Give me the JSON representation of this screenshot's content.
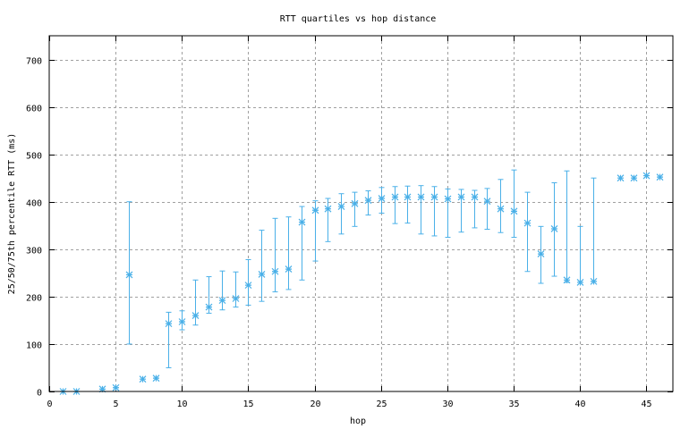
{
  "chart_data": {
    "type": "scatter",
    "title": "RTT quartiles vs hop distance",
    "xlabel": "hop",
    "ylabel": "25/50/75th percentile RTT (ms)",
    "xlim": [
      0,
      47
    ],
    "ylim": [
      0,
      750
    ],
    "xticks": [
      0,
      5,
      10,
      15,
      20,
      25,
      30,
      35,
      40,
      45
    ],
    "yticks": [
      0,
      100,
      200,
      300,
      400,
      500,
      600,
      700
    ],
    "grid": true,
    "series_color": "#4ab0e8",
    "points": [
      {
        "hop": 1,
        "p50": 0
      },
      {
        "hop": 2,
        "p50": 0
      },
      {
        "hop": 4,
        "p50": 5
      },
      {
        "hop": 5,
        "p50": 8
      },
      {
        "hop": 6,
        "p25": 100,
        "p50": 246,
        "p75": 400
      },
      {
        "hop": 7,
        "p50": 26
      },
      {
        "hop": 8,
        "p50": 28
      },
      {
        "hop": 9,
        "p25": 50,
        "p50": 143,
        "p75": 167
      },
      {
        "hop": 10,
        "p25": 130,
        "p50": 147,
        "p75": 170
      },
      {
        "hop": 11,
        "p25": 140,
        "p50": 160,
        "p75": 235
      },
      {
        "hop": 12,
        "p25": 165,
        "p50": 178,
        "p75": 242
      },
      {
        "hop": 13,
        "p25": 172,
        "p50": 192,
        "p75": 254
      },
      {
        "hop": 14,
        "p25": 178,
        "p50": 196,
        "p75": 252
      },
      {
        "hop": 15,
        "p25": 182,
        "p50": 224,
        "p75": 278
      },
      {
        "hop": 16,
        "p25": 190,
        "p50": 247,
        "p75": 340
      },
      {
        "hop": 17,
        "p25": 210,
        "p50": 253,
        "p75": 365
      },
      {
        "hop": 18,
        "p25": 215,
        "p50": 258,
        "p75": 368
      },
      {
        "hop": 19,
        "p25": 235,
        "p50": 357,
        "p75": 390
      },
      {
        "hop": 20,
        "p25": 275,
        "p50": 382,
        "p75": 402
      },
      {
        "hop": 21,
        "p25": 316,
        "p50": 385,
        "p75": 407
      },
      {
        "hop": 22,
        "p25": 332,
        "p50": 390,
        "p75": 417
      },
      {
        "hop": 23,
        "p25": 348,
        "p50": 396,
        "p75": 420
      },
      {
        "hop": 24,
        "p25": 372,
        "p50": 403,
        "p75": 423
      },
      {
        "hop": 25,
        "p25": 376,
        "p50": 407,
        "p75": 430
      },
      {
        "hop": 26,
        "p25": 354,
        "p50": 410,
        "p75": 432
      },
      {
        "hop": 27,
        "p25": 355,
        "p50": 410,
        "p75": 433
      },
      {
        "hop": 28,
        "p25": 332,
        "p50": 410,
        "p75": 434
      },
      {
        "hop": 29,
        "p25": 328,
        "p50": 410,
        "p75": 432
      },
      {
        "hop": 30,
        "p25": 325,
        "p50": 406,
        "p75": 427
      },
      {
        "hop": 31,
        "p25": 336,
        "p50": 410,
        "p75": 426
      },
      {
        "hop": 32,
        "p25": 345,
        "p50": 410,
        "p75": 424
      },
      {
        "hop": 33,
        "p25": 342,
        "p50": 401,
        "p75": 428
      },
      {
        "hop": 34,
        "p25": 335,
        "p50": 385,
        "p75": 447
      },
      {
        "hop": 35,
        "p25": 325,
        "p50": 380,
        "p75": 467
      },
      {
        "hop": 36,
        "p25": 253,
        "p50": 355,
        "p75": 420
      },
      {
        "hop": 37,
        "p25": 228,
        "p50": 290,
        "p75": 348
      },
      {
        "hop": 38,
        "p25": 243,
        "p50": 343,
        "p75": 440
      },
      {
        "hop": 39,
        "p25": 230,
        "p50": 235,
        "p75": 465
      },
      {
        "hop": 40,
        "p25": 230,
        "p50": 230,
        "p75": 348
      },
      {
        "hop": 41,
        "p25": 232,
        "p50": 232,
        "p75": 450
      },
      {
        "hop": 43,
        "p50": 450
      },
      {
        "hop": 44,
        "p50": 450
      },
      {
        "hop": 45,
        "p50": 455
      },
      {
        "hop": 46,
        "p50": 452
      }
    ]
  }
}
